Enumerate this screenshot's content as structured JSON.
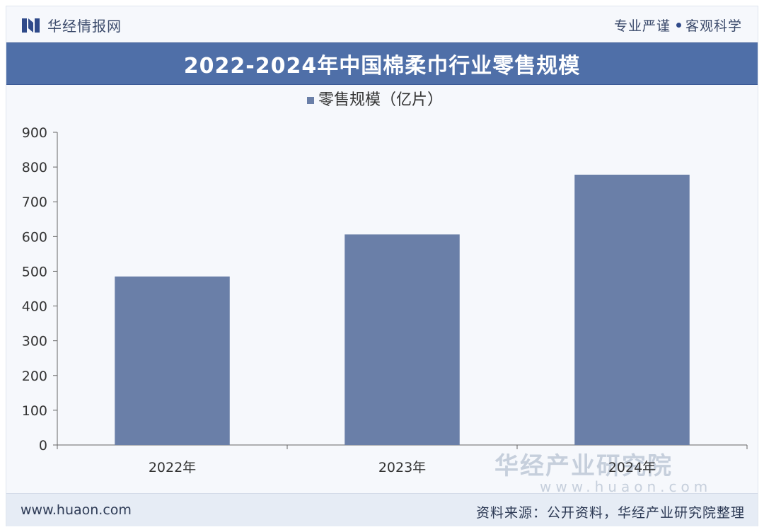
{
  "header": {
    "brand": "华经情报网",
    "slogan_left": "专业严谨",
    "slogan_right": "客观科学"
  },
  "title": "2022-2024年中国棉柔巾行业零售规模",
  "chart_data": {
    "type": "bar",
    "categories": [
      "2022年",
      "2023年",
      "2024年"
    ],
    "series": [
      {
        "name": "零售规模（亿片）",
        "values": [
          485,
          606,
          778
        ]
      }
    ],
    "ylim": [
      0,
      900
    ],
    "yticks": [
      0,
      100,
      200,
      300,
      400,
      500,
      600,
      700,
      800,
      900
    ],
    "legend": "top-center",
    "grid": false,
    "bar_color": "#6a7fa8"
  },
  "watermark": {
    "line1": "华经产业研究院",
    "line2": "www.huaon.com"
  },
  "footer": {
    "website": "www.huaon.com",
    "source": "资料来源：公开资料，华经产业研究院整理"
  },
  "colors": {
    "title_band": "#4f6fa8",
    "bar": "#6a7fa8",
    "footer_bg": "#e6ecf5"
  }
}
